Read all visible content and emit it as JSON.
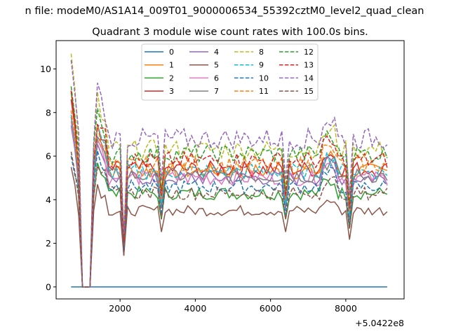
{
  "chart_data": {
    "type": "line",
    "suptitle": "n file: modeM0/AS1A14_009T01_9000006534_55392cztM0_level2_quad_clean",
    "title": "Quadrant 3 module wise count rates with 100.0s bins.",
    "xlabel": "",
    "ylabel": "",
    "x_offset_label": "+5.0422e8",
    "xlim": [
      300,
      9550
    ],
    "ylim": [
      -0.55,
      11.3
    ],
    "x_ticks": [
      2000,
      4000,
      6000,
      8000
    ],
    "x_tick_labels": [
      "2000",
      "4000",
      "6000",
      "8000"
    ],
    "y_ticks": [
      0,
      2,
      4,
      6,
      8,
      10
    ],
    "y_tick_labels": [
      "0",
      "2",
      "4",
      "6",
      "8",
      "10"
    ],
    "legend_position": "upper-center",
    "legend_columns": 4,
    "x": [
      700,
      800,
      900,
      1000,
      1100,
      1200,
      1300,
      1400,
      1500,
      1600,
      1700,
      1800,
      1900,
      2000,
      2100,
      2200,
      2300,
      2400,
      2500,
      2600,
      2700,
      2800,
      2900,
      3000,
      3100,
      3200,
      3300,
      3400,
      3500,
      3600,
      3700,
      3800,
      3900,
      4000,
      4100,
      4200,
      4300,
      4400,
      4500,
      4600,
      4700,
      4800,
      4900,
      5000,
      5100,
      5200,
      5300,
      5400,
      5500,
      5600,
      5700,
      5800,
      5900,
      6000,
      6100,
      6200,
      6300,
      6400,
      6500,
      6600,
      6700,
      6800,
      6900,
      7000,
      7100,
      7200,
      7300,
      7400,
      7500,
      7600,
      7700,
      7800,
      7900,
      8000,
      8100,
      8200,
      8300,
      8400,
      8500,
      8600,
      8700,
      8800,
      8900,
      9000,
      9100
    ],
    "series": [
      {
        "name": "0",
        "color": "#1f77b4",
        "dash": false,
        "level": 0.0
      },
      {
        "name": "1",
        "color": "#ff7f0e",
        "dash": false,
        "level": 5.3,
        "start": 8.9
      },
      {
        "name": "2",
        "color": "#2ca02c",
        "dash": false,
        "level": 4.3,
        "start": 9.0
      },
      {
        "name": "3",
        "color": "#d62728",
        "dash": false,
        "level": 5.4,
        "start": 8.6
      },
      {
        "name": "4",
        "color": "#9467bd",
        "dash": false,
        "level": 5.0,
        "start": 7.4
      },
      {
        "name": "5",
        "color": "#8c564b",
        "dash": false,
        "level": 3.5,
        "start": 5.5
      },
      {
        "name": "6",
        "color": "#e377c2",
        "dash": false,
        "level": 5.0,
        "start": 7.6
      },
      {
        "name": "7",
        "color": "#7f7f7f",
        "dash": false,
        "level": 5.1,
        "start": 7.8
      },
      {
        "name": "8",
        "color": "#bcbd22",
        "dash": true,
        "level": 6.3,
        "start": 10.7
      },
      {
        "name": "9",
        "color": "#17becf",
        "dash": true,
        "level": 5.3,
        "start": 7.9
      },
      {
        "name": "10",
        "color": "#1f77b4",
        "dash": true,
        "level": 4.6,
        "start": 6.0
      },
      {
        "name": "11",
        "color": "#ff7f0e",
        "dash": true,
        "level": 5.6,
        "start": 8.1
      },
      {
        "name": "12",
        "color": "#2ca02c",
        "dash": true,
        "level": 6.1,
        "start": 9.2
      },
      {
        "name": "13",
        "color": "#d62728",
        "dash": true,
        "level": 5.8,
        "start": 9.0
      },
      {
        "name": "14",
        "color": "#9467bd",
        "dash": true,
        "level": 6.8,
        "start": 10.4
      },
      {
        "name": "15",
        "color": "#8c564b",
        "dash": true,
        "level": 4.3,
        "start": 6.2
      }
    ],
    "common_features": {
      "zero_gap_x": [
        1000,
        1100,
        1200
      ],
      "dip_x": 2100,
      "dip_factor": 0.33,
      "dip2_x": 3100,
      "dip2_factor": 0.72,
      "dip3_x": 6400,
      "dip3_factor": 0.72,
      "rise_x": [
        7400,
        7500,
        7600,
        7700
      ],
      "rise_factor": 1.12,
      "dip4_x": 8100,
      "dip4_factor": 0.62
    }
  }
}
